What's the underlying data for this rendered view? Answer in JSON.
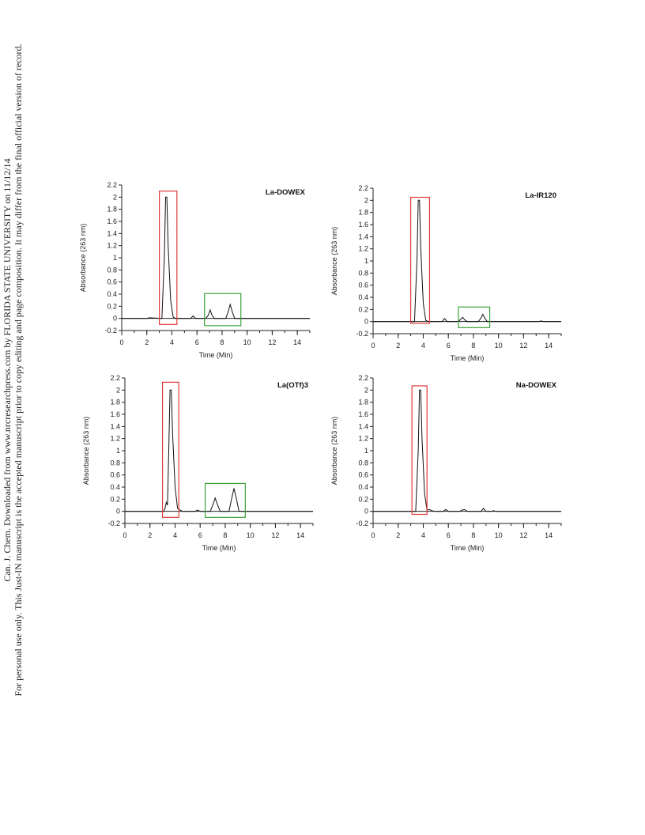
{
  "page": {
    "side_note_line1": "Can. J. Chem. Downloaded from www.nrcresearchpress.com by FLORIDA STATE UNIVERSITY on 11/12/14",
    "side_note_line2": "For personal use only. This Just-IN manuscript is the accepted manuscript prior to copy editing and page composition. It may differ from the final official version of record."
  },
  "colors": {
    "trace": "#111111",
    "highlight_red": "#e23a3a",
    "highlight_green": "#3aa23a",
    "axis": "#222222"
  },
  "chart_data": [
    {
      "type": "line",
      "title": "La-DOWEX",
      "xlabel": "Time (Min)",
      "ylabel": "Absorbance (263 nm)",
      "xlim": [
        0,
        15
      ],
      "ylim": [
        -0.2,
        2.2
      ],
      "xticks": [
        "0",
        "2",
        "4",
        "6",
        "8",
        "10",
        "12",
        "14"
      ],
      "yticks": [
        "-0.2",
        "0",
        "0.2",
        "0.4",
        "0.6",
        "0.8",
        "1",
        "1.2",
        "1.4",
        "1.6",
        "1.8",
        "2",
        "2.2"
      ],
      "series": [
        {
          "x": [
            0,
            2.0,
            2.2,
            3.2,
            3.4,
            3.5,
            3.6,
            3.7,
            3.9,
            4.1,
            4.3,
            5.5,
            5.7,
            5.9,
            6.7,
            6.9,
            7.05,
            7.2,
            7.4,
            8.3,
            8.5,
            8.65,
            8.8,
            9.0,
            10.0,
            15.0
          ],
          "y": [
            0,
            0,
            0.01,
            0,
            1.0,
            2.0,
            2.0,
            1.2,
            0.3,
            0.02,
            0,
            0,
            0.04,
            0,
            0,
            0.05,
            0.14,
            0.05,
            0,
            0,
            0.12,
            0.23,
            0.12,
            0,
            0,
            0
          ]
        }
      ],
      "highlights": [
        {
          "color": "red",
          "x": [
            3.0,
            4.4
          ],
          "y": [
            -0.1,
            2.1
          ]
        },
        {
          "color": "green",
          "x": [
            6.6,
            9.5
          ],
          "y": [
            -0.12,
            0.41
          ]
        }
      ]
    },
    {
      "type": "line",
      "title": "La-IR120",
      "xlabel": "Time (Min)",
      "ylabel": "Absorbance (263 nm)",
      "xlim": [
        0,
        15
      ],
      "ylim": [
        -0.2,
        2.2
      ],
      "xticks": [
        "0",
        "2",
        "4",
        "6",
        "8",
        "10",
        "12",
        "14"
      ],
      "yticks": [
        "-0.2",
        "0",
        "0.2",
        "0.4",
        "0.6",
        "0.8",
        "1",
        "1.2",
        "1.4",
        "1.6",
        "1.8",
        "2",
        "2.2"
      ],
      "series": [
        {
          "x": [
            0,
            3.3,
            3.5,
            3.6,
            3.7,
            3.8,
            4.0,
            4.2,
            4.4,
            5.5,
            5.7,
            5.9,
            6.8,
            7.0,
            7.15,
            7.3,
            7.5,
            8.4,
            8.6,
            8.75,
            8.9,
            9.1,
            10.5,
            13.2,
            13.4,
            13.6,
            15.0
          ],
          "y": [
            0,
            0,
            1.0,
            2.0,
            2.0,
            1.2,
            0.3,
            0.02,
            0,
            0,
            0.05,
            0,
            0,
            0.04,
            0.07,
            0.03,
            0,
            0,
            0.06,
            0.12,
            0.06,
            0,
            0,
            0,
            0.01,
            0,
            0
          ]
        }
      ],
      "highlights": [
        {
          "color": "red",
          "x": [
            3.0,
            4.5
          ],
          "y": [
            -0.03,
            2.05
          ]
        },
        {
          "color": "green",
          "x": [
            6.8,
            9.3
          ],
          "y": [
            -0.1,
            0.24
          ]
        }
      ]
    },
    {
      "type": "line",
      "title": "La(OTf)3",
      "xlabel": "Time (Min)",
      "ylabel": "Absorbance (263 nm)",
      "xlim": [
        0,
        15
      ],
      "ylim": [
        -0.2,
        2.2
      ],
      "xticks": [
        "0",
        "2",
        "4",
        "6",
        "8",
        "10",
        "12",
        "14"
      ],
      "yticks": [
        "-0.2",
        "0",
        "0.2",
        "0.4",
        "0.6",
        "0.8",
        "1",
        "1.2",
        "1.4",
        "1.6",
        "1.8",
        "2",
        "2.2"
      ],
      "series": [
        {
          "x": [
            0,
            3.1,
            3.2,
            3.3,
            3.4,
            3.5,
            3.6,
            3.7,
            3.8,
            4.0,
            4.2,
            4.4,
            4.6,
            5.6,
            5.8,
            6.0,
            6.8,
            7.0,
            7.2,
            7.4,
            7.6,
            8.3,
            8.5,
            8.7,
            8.9,
            9.1,
            15.0
          ],
          "y": [
            0,
            0,
            0.05,
            0.15,
            0.1,
            1.0,
            2.0,
            2.0,
            1.3,
            0.4,
            0.05,
            0.02,
            0,
            0,
            0.02,
            0,
            0,
            0.1,
            0.22,
            0.1,
            0,
            0,
            0.2,
            0.38,
            0.2,
            0,
            0
          ]
        }
      ],
      "highlights": [
        {
          "color": "red",
          "x": [
            3.0,
            4.3
          ],
          "y": [
            -0.1,
            2.13
          ]
        },
        {
          "color": "green",
          "x": [
            6.4,
            9.6
          ],
          "y": [
            -0.1,
            0.46
          ]
        }
      ]
    },
    {
      "type": "line",
      "title": "Na-DOWEX",
      "xlabel": "Time (Min)",
      "ylabel": "Absorbance (263 nm)",
      "xlim": [
        0,
        15
      ],
      "ylim": [
        -0.2,
        2.2
      ],
      "xticks": [
        "0",
        "2",
        "4",
        "6",
        "8",
        "10",
        "12",
        "14"
      ],
      "yticks": [
        "-0.2",
        "0",
        "0.2",
        "0.4",
        "0.6",
        "0.8",
        "1",
        "1.2",
        "1.4",
        "1.6",
        "1.8",
        "2",
        "2.2"
      ],
      "series": [
        {
          "x": [
            0,
            3.4,
            3.6,
            3.7,
            3.8,
            3.9,
            4.1,
            4.3,
            4.5,
            4.7,
            4.9,
            5.6,
            5.8,
            6.0,
            6.9,
            7.1,
            7.3,
            7.5,
            8.6,
            8.8,
            9.0,
            9.4,
            9.6,
            9.8,
            15.0
          ],
          "y": [
            0,
            0,
            1.0,
            2.0,
            2.0,
            1.2,
            0.3,
            0.02,
            0.03,
            0.01,
            0,
            0,
            0.03,
            0,
            0,
            0.02,
            0.03,
            0,
            0,
            0.05,
            0,
            0,
            0.01,
            0,
            0
          ]
        }
      ],
      "highlights": [
        {
          "color": "red",
          "x": [
            3.1,
            4.3
          ],
          "y": [
            -0.05,
            2.07
          ]
        }
      ]
    }
  ]
}
